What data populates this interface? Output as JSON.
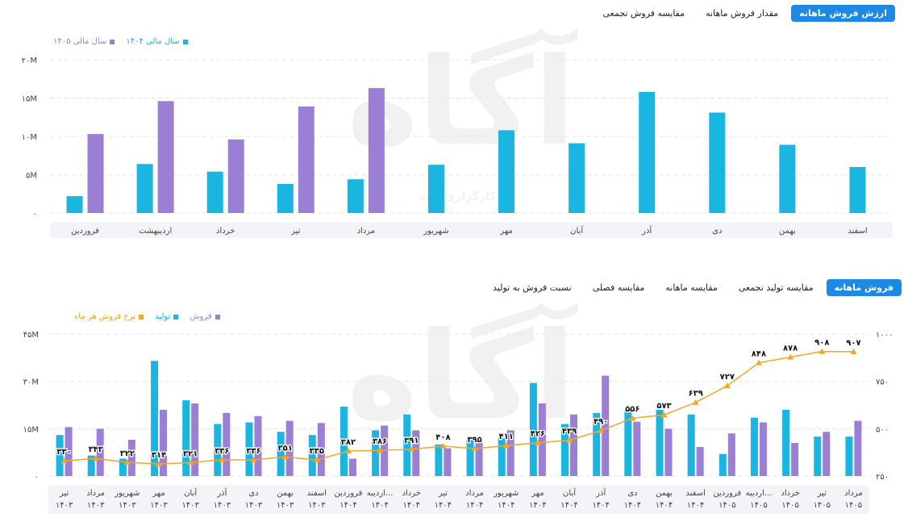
{
  "colors": {
    "blue": "#1ab5e0",
    "purple": "#9b7fd4",
    "orange": "#f5a623",
    "accent": "#1e88e5",
    "axis_bg": "#f3f3f8"
  },
  "watermark": {
    "logo": "آگاه",
    "text": "کارگزاری آگاه"
  },
  "top_tabs": [
    {
      "label": "ارزش فروش ماهانه",
      "active": true
    },
    {
      "label": "مقدار فروش ماهانه",
      "active": false
    },
    {
      "label": "مقایسه فروش تجمعی",
      "active": false
    }
  ],
  "bottom_tabs": [
    {
      "label": "فروش ماهانه",
      "active": true
    },
    {
      "label": "مقایسه تولید تجمعی",
      "active": false
    },
    {
      "label": "مقایسه ماهانه",
      "active": false
    },
    {
      "label": "مقایسه فصلی",
      "active": false
    },
    {
      "label": "نسبت فروش به تولید",
      "active": false
    }
  ],
  "chart_data": [
    {
      "type": "bar",
      "legend_position": "top-left",
      "grid": true,
      "ylim": [
        0,
        20
      ],
      "y_unit": "M",
      "y_ticks": [
        "۰",
        "۵M",
        "۱۰M",
        "۱۵M",
        "۲۰M"
      ],
      "categories": [
        "فروردین",
        "اردیبهشت",
        "خرداد",
        "تیر",
        "مرداد",
        "شهریور",
        "مهر",
        "آبان",
        "آذر",
        "دی",
        "بهمن",
        "اسفند"
      ],
      "series": [
        {
          "name": "سال مالی ۱۴۰۴",
          "color": "blue",
          "values": [
            2.2,
            6.4,
            5.4,
            3.8,
            4.4,
            6.3,
            10.8,
            9.1,
            15.8,
            13.1,
            8.9,
            6.0
          ]
        },
        {
          "name": "سال مالی ۱۴۰۵",
          "color": "purple",
          "values": [
            10.3,
            14.6,
            9.6,
            13.9,
            16.3,
            null,
            null,
            null,
            null,
            null,
            null,
            null
          ]
        }
      ]
    },
    {
      "type": "bar",
      "legend_position": "top-left",
      "grid": true,
      "ylim": [
        0,
        45
      ],
      "y_unit": "M",
      "y_ticks": [
        "۰",
        "۱۵M",
        "۳۰M",
        "۴۵M"
      ],
      "y2lim": [
        250,
        1000
      ],
      "y2_ticks": [
        "۲۵۰",
        "۵۰۰",
        "۷۵۰",
        "۱۰۰۰"
      ],
      "categories": [
        [
          "تیر",
          "۱۴۰۳"
        ],
        [
          "مرداد",
          "۱۴۰۳"
        ],
        [
          "شهریور",
          "۱۴۰۳"
        ],
        [
          "مهر",
          "۱۴۰۳"
        ],
        [
          "آبان",
          "۱۴۰۳"
        ],
        [
          "آذر",
          "۱۴۰۳"
        ],
        [
          "دی",
          "۱۴۰۳"
        ],
        [
          "بهمن",
          "۱۴۰۳"
        ],
        [
          "اسفند",
          "۱۴۰۳"
        ],
        [
          "فروردین",
          "۱۴۰۴"
        ],
        [
          "اردیبه...",
          "۱۴۰۴"
        ],
        [
          "خرداد",
          "۱۴۰۴"
        ],
        [
          "تیر",
          "۱۴۰۴"
        ],
        [
          "مرداد",
          "۱۴۰۴"
        ],
        [
          "شهریور",
          "۱۴۰۴"
        ],
        [
          "مهر",
          "۱۴۰۴"
        ],
        [
          "آبان",
          "۱۴۰۴"
        ],
        [
          "آذر",
          "۱۴۰۴"
        ],
        [
          "دی",
          "۱۴۰۴"
        ],
        [
          "بهمن",
          "۱۴۰۴"
        ],
        [
          "اسفند",
          "۱۴۰۴"
        ],
        [
          "فروردین",
          "۱۴۰۵"
        ],
        [
          "اردیبه...",
          "۱۴۰۵"
        ],
        [
          "خرداد",
          "۱۴۰۵"
        ],
        [
          "تیر",
          "۱۴۰۵"
        ],
        [
          "مرداد",
          "۱۴۰۵"
        ]
      ],
      "series": [
        {
          "name": "فروش",
          "color": "purple",
          "type": "bar",
          "values": [
            15.5,
            15.0,
            11.5,
            21.0,
            23.0,
            20.0,
            19.0,
            17.5,
            16.8,
            5.5,
            16.0,
            14.5,
            8.8,
            10.5,
            14.5,
            23.0,
            19.5,
            31.8,
            17.2,
            15.0,
            9.2,
            13.5,
            17.0,
            10.5,
            14.0,
            17.5
          ]
        },
        {
          "name": "تولید",
          "color": "blue",
          "type": "bar",
          "values": [
            13.0,
            6.5,
            5.5,
            36.5,
            24.0,
            16.5,
            17.0,
            14.0,
            13.0,
            22.0,
            14.5,
            19.5,
            10.0,
            11.5,
            12.0,
            29.5,
            16.5,
            20.0,
            21.0,
            21.0,
            19.5,
            7.0,
            18.5,
            21.0,
            12.5,
            12.5
          ]
        },
        {
          "name": "نرخ فروش هر ماه",
          "color": "orange",
          "type": "line",
          "axis": "right",
          "values": [
            330,
            343,
            322,
            314,
            321,
            336,
            336,
            351,
            335,
            382,
            386,
            391,
            408,
            395,
            411,
            426,
            439,
            490,
            556,
            573,
            639,
            727,
            848,
            878,
            908,
            907
          ],
          "labels": [
            "۳۳۰",
            "۳۴۳",
            "۳۲۲",
            "۳۱۴",
            "۳۲۱",
            "۳۳۶",
            "۳۳۶",
            "۳۵۱",
            "۳۳۵",
            "۳۸۲",
            "۳۸۶",
            "۳۹۱",
            "۴۰۸",
            "۳۹۵",
            "۴۱۱",
            "۴۲۶",
            "۴۳۹",
            "۴۹۰",
            "۵۵۶",
            "۵۷۳",
            "۶۳۹",
            "۷۲۷",
            "۸۴۸",
            "۸۷۸",
            "۹۰۸",
            "۹۰۷"
          ]
        }
      ]
    }
  ]
}
